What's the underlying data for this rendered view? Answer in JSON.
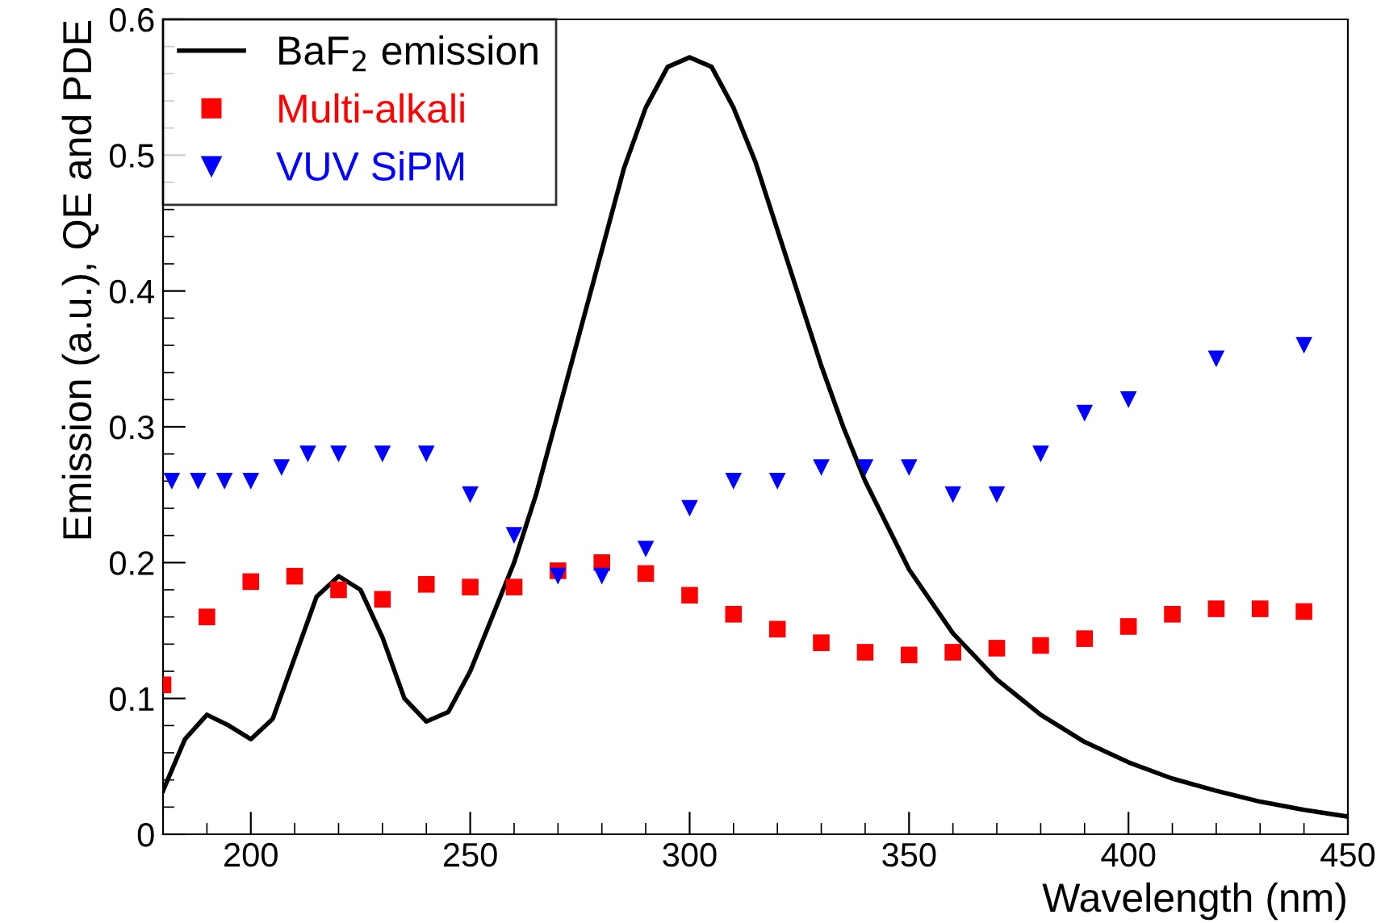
{
  "chart_data": {
    "type": "scatter",
    "xlabel": "Wavelength (nm)",
    "ylabel": "Emission (a.u.), QE and PDE",
    "xlim": [
      180,
      450
    ],
    "ylim": [
      0,
      0.6
    ],
    "xticks": [
      200,
      250,
      300,
      350,
      400,
      450
    ],
    "yticks": [
      0,
      0.1,
      0.2,
      0.3,
      0.4,
      0.5,
      0.6
    ],
    "grid": false,
    "legend": "top left",
    "series": [
      {
        "name": "BaF$_{2}$ emission",
        "type": "line",
        "color": "#000000",
        "marker": "none",
        "line_style": "solid",
        "x": [
          180,
          185,
          190,
          195,
          200,
          205,
          210,
          215,
          220,
          225,
          230,
          235,
          240,
          245,
          250,
          255,
          260,
          265,
          270,
          275,
          280,
          285,
          290,
          295,
          300,
          305,
          310,
          315,
          320,
          325,
          330,
          335,
          340,
          350,
          360,
          370,
          380,
          390,
          400,
          410,
          420,
          430,
          440,
          450
        ],
        "values": [
          0.032,
          0.07,
          0.088,
          0.08,
          0.07,
          0.085,
          0.13,
          0.175,
          0.19,
          0.18,
          0.145,
          0.1,
          0.083,
          0.09,
          0.12,
          0.16,
          0.2,
          0.25,
          0.31,
          0.37,
          0.43,
          0.49,
          0.535,
          0.565,
          0.572,
          0.565,
          0.535,
          0.495,
          0.445,
          0.395,
          0.345,
          0.3,
          0.26,
          0.195,
          0.148,
          0.114,
          0.088,
          0.068,
          0.053,
          0.041,
          0.032,
          0.024,
          0.018,
          0.013
        ]
      },
      {
        "name": "Multi-alkali",
        "color": "#ff0000",
        "marker": "square",
        "x": [
          180,
          190,
          200,
          210,
          220,
          230,
          240,
          250,
          260,
          270,
          280,
          290,
          300,
          310,
          320,
          330,
          340,
          350,
          360,
          370,
          380,
          390,
          400,
          410,
          420,
          430,
          440
        ],
        "values": [
          0.11,
          0.16,
          0.186,
          0.19,
          0.18,
          0.173,
          0.184,
          0.182,
          0.182,
          0.194,
          0.2,
          0.192,
          0.176,
          0.162,
          0.151,
          0.141,
          0.134,
          0.132,
          0.134,
          0.137,
          0.139,
          0.144,
          0.153,
          0.162,
          0.166,
          0.166,
          0.164
        ]
      },
      {
        "name": "VUV SiPM",
        "color": "#0000ff",
        "marker": "triangle",
        "x": [
          182,
          188,
          194,
          200,
          207,
          213,
          220,
          230,
          240,
          250,
          260,
          270,
          280,
          290,
          300,
          310,
          320,
          330,
          340,
          350,
          360,
          370,
          380,
          390,
          400,
          420,
          440
        ],
        "values": [
          0.26,
          0.26,
          0.26,
          0.26,
          0.27,
          0.28,
          0.28,
          0.28,
          0.28,
          0.25,
          0.22,
          0.19,
          0.19,
          0.21,
          0.24,
          0.26,
          0.26,
          0.27,
          0.27,
          0.27,
          0.25,
          0.25,
          0.28,
          0.31,
          0.32,
          0.35,
          0.36
        ]
      }
    ]
  }
}
